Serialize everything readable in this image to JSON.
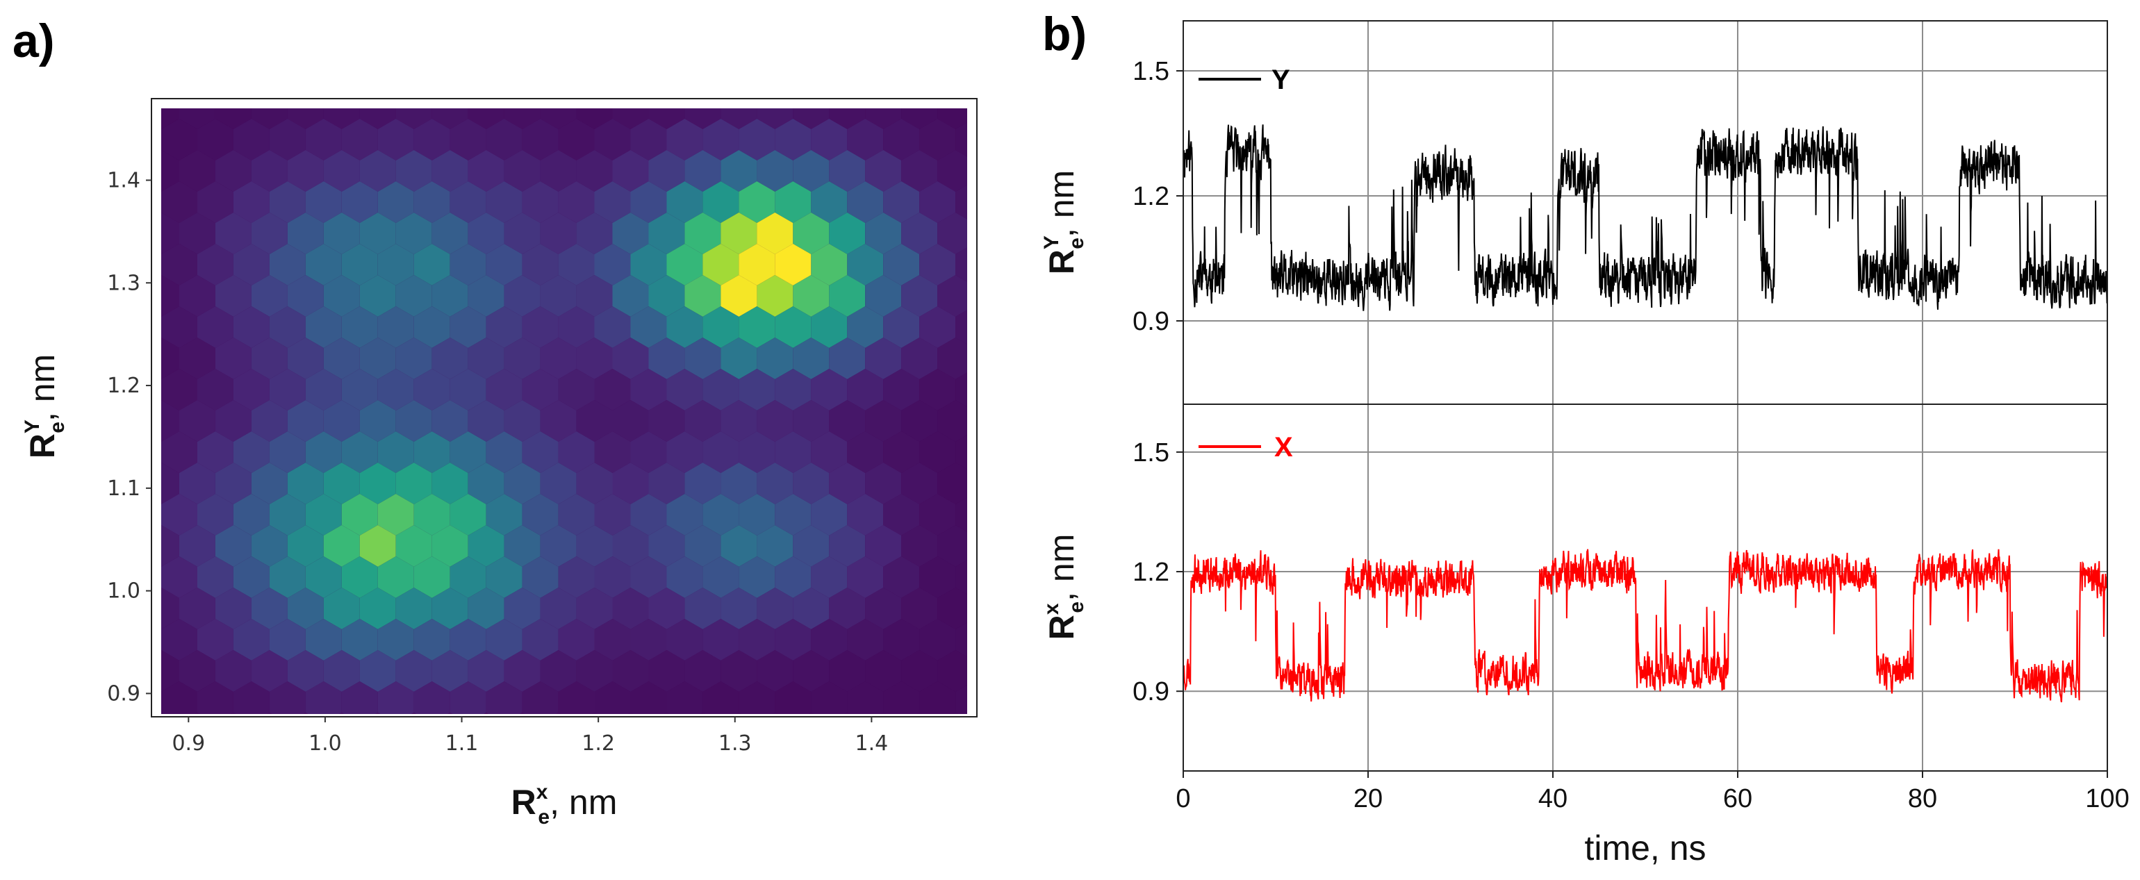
{
  "figure": {
    "panel_a_label": "a)",
    "panel_b_label": "b)"
  },
  "chart_data": [
    {
      "type": "heatmap",
      "subtype": "hexbin",
      "panel": "a)",
      "colormap": "viridis",
      "xlabel": "R_e^x, nm",
      "ylabel": "R_e^Y, nm",
      "xlabel_parts": {
        "main": "R",
        "sub": "e",
        "sup": "x",
        "unit": ", nm"
      },
      "ylabel_parts": {
        "main": "R",
        "sub": "e",
        "sup": "Y",
        "unit": ", nm"
      },
      "xlim": [
        0.88,
        1.47
      ],
      "ylim": [
        0.88,
        1.47
      ],
      "xticks": [
        "0.9",
        "1.0",
        "1.1",
        "1.2",
        "1.3",
        "1.4"
      ],
      "yticks": [
        "0.9",
        "1.0",
        "1.1",
        "1.2",
        "1.3",
        "1.4"
      ],
      "grid": false,
      "density_peaks": [
        {
          "x": 1.05,
          "y": 1.05,
          "relative_density": 0.7,
          "spread": 0.075
        },
        {
          "x": 1.32,
          "y": 1.315,
          "relative_density": 1.0,
          "spread": 0.06
        },
        {
          "x": 1.05,
          "y": 1.31,
          "relative_density": 0.38,
          "spread": 0.07
        },
        {
          "x": 1.31,
          "y": 1.05,
          "relative_density": 0.32,
          "spread": 0.055
        }
      ],
      "background_density": 0.03
    },
    {
      "type": "line",
      "panel": "b) top",
      "series": [
        {
          "name": "Y",
          "color": "#000000",
          "states": [
            {
              "from": 0,
              "to": 1,
              "level": 1.3
            },
            {
              "from": 1,
              "to": 4.5,
              "level": 1.0
            },
            {
              "from": 4.5,
              "to": 9.5,
              "level": 1.3
            },
            {
              "from": 9.5,
              "to": 25,
              "level": 1.0
            },
            {
              "from": 25,
              "to": 31.5,
              "level": 1.25
            },
            {
              "from": 31.5,
              "to": 40.5,
              "level": 1.0
            },
            {
              "from": 40.5,
              "to": 45,
              "level": 1.25
            },
            {
              "from": 45,
              "to": 55.5,
              "level": 1.0
            },
            {
              "from": 55.5,
              "to": 62.5,
              "level": 1.3
            },
            {
              "from": 62.5,
              "to": 64,
              "level": 1.0
            },
            {
              "from": 64,
              "to": 73,
              "level": 1.3
            },
            {
              "from": 73,
              "to": 84,
              "level": 1.0
            },
            {
              "from": 84,
              "to": 90.5,
              "level": 1.27
            },
            {
              "from": 90.5,
              "to": 100,
              "level": 1.0
            }
          ],
          "noise_amplitude": 0.09
        }
      ],
      "xlim": [
        0,
        100
      ],
      "ylim": [
        0.7,
        1.62
      ],
      "yticks": [
        "0.9",
        "1.2",
        "1.5"
      ],
      "ylabel_parts": {
        "main": "R",
        "sub": "e",
        "sup": "Y",
        "unit": ", nm"
      },
      "legend": {
        "label": "Y",
        "placement": "top-left"
      },
      "grid": true
    },
    {
      "type": "line",
      "panel": "b) bottom",
      "series": [
        {
          "name": "X",
          "color": "#ff0000",
          "states": [
            {
              "from": 0,
              "to": 0.8,
              "level": 0.95
            },
            {
              "from": 0.8,
              "to": 10,
              "level": 1.2
            },
            {
              "from": 10,
              "to": 17.5,
              "level": 0.93
            },
            {
              "from": 17.5,
              "to": 31.5,
              "level": 1.18
            },
            {
              "from": 31.5,
              "to": 38.5,
              "level": 0.95
            },
            {
              "from": 38.5,
              "to": 49,
              "level": 1.2
            },
            {
              "from": 49,
              "to": 59,
              "level": 0.95
            },
            {
              "from": 59,
              "to": 75,
              "level": 1.2
            },
            {
              "from": 75,
              "to": 79,
              "level": 0.95
            },
            {
              "from": 79,
              "to": 89.5,
              "level": 1.2
            },
            {
              "from": 89.5,
              "to": 97,
              "level": 0.93
            },
            {
              "from": 97,
              "to": 100,
              "level": 1.18
            }
          ],
          "noise_amplitude": 0.07
        }
      ],
      "xlim": [
        0,
        100
      ],
      "ylim": [
        0.7,
        1.62
      ],
      "xticks": [
        "0",
        "20",
        "40",
        "60",
        "80",
        "100"
      ],
      "yticks": [
        "0.9",
        "1.2",
        "1.5"
      ],
      "xlabel": "time, ns",
      "ylabel_parts": {
        "main": "R",
        "sub": "e",
        "sup": "x",
        "unit": ", nm"
      },
      "legend": {
        "label": "X",
        "placement": "top-left"
      },
      "grid": true
    }
  ]
}
